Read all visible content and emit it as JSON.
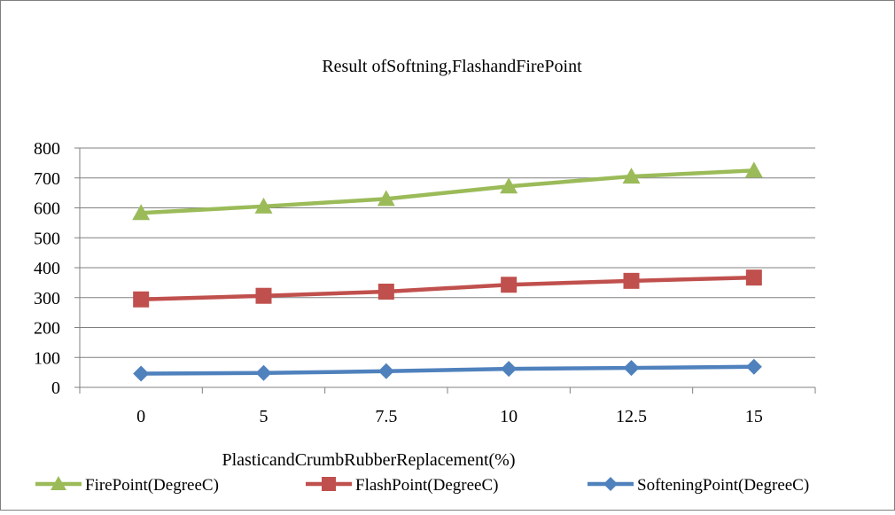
{
  "chart_data": {
    "type": "line",
    "title": "Result ofSoftning,FlashandFirePoint",
    "xlabel": "PlasticandCrumbRubberReplacement(%)",
    "ylabel": "",
    "categories": [
      "0",
      "5",
      "7.5",
      "10",
      "12.5",
      "15"
    ],
    "ylim": [
      0,
      800
    ],
    "yticks": [
      "0",
      "100",
      "200",
      "300",
      "400",
      "500",
      "600",
      "700",
      "800"
    ],
    "grid": true,
    "legend_position": "bottom",
    "series": [
      {
        "name": "FirePoint(DegreeC)",
        "values": [
          583,
          605,
          630,
          672,
          705,
          725
        ],
        "color": "#9BBB59",
        "marker": "triangle"
      },
      {
        "name": "FlashPoint(DegreeC)",
        "values": [
          294,
          306,
          320,
          343,
          356,
          367
        ],
        "color": "#C0504D",
        "marker": "square"
      },
      {
        "name": "SofteningPoint(DegreeC)",
        "values": [
          46,
          48,
          54,
          62,
          65,
          69
        ],
        "color": "#4F81BD",
        "marker": "diamond"
      }
    ]
  }
}
